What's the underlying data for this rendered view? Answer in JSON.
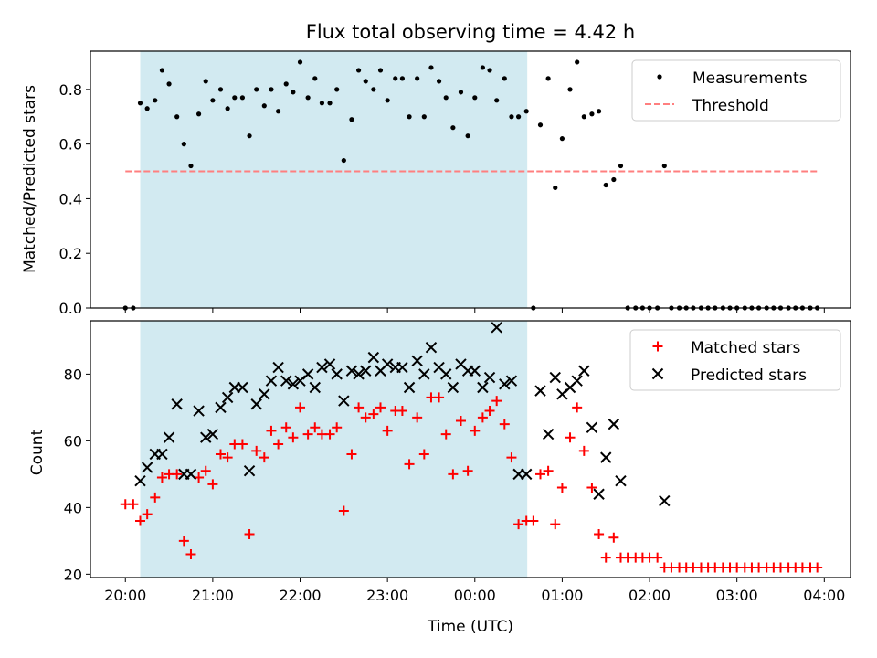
{
  "chart_data": [
    {
      "type": "scatter",
      "title": "Flux total observing time = 4.42 h",
      "ylabel": "Matched/Predicted stars",
      "xlabel": "",
      "xlim": [
        -0.4,
        8.3
      ],
      "ylim": [
        0,
        0.94
      ],
      "yticks": [
        0.0,
        0.2,
        0.4,
        0.6,
        0.8
      ],
      "ytick_labels": [
        "0.0",
        "0.2",
        "0.4",
        "0.6",
        "0.8"
      ],
      "shaded_span": [
        0.17,
        4.6
      ],
      "shaded_color": "#add8e6",
      "legend_position": "upper right",
      "series": [
        {
          "name": "Measurements",
          "marker": "dot",
          "color": "#000000",
          "x": [
            0.0,
            0.09,
            0.17,
            0.25,
            0.34,
            0.42,
            0.5,
            0.59,
            0.67,
            0.75,
            0.84,
            0.92,
            1.0,
            1.09,
            1.17,
            1.25,
            1.34,
            1.42,
            1.5,
            1.59,
            1.67,
            1.75,
            1.84,
            1.92,
            2.0,
            2.09,
            2.17,
            2.25,
            2.34,
            2.42,
            2.5,
            2.59,
            2.67,
            2.75,
            2.84,
            2.92,
            3.0,
            3.09,
            3.17,
            3.25,
            3.34,
            3.42,
            3.5,
            3.59,
            3.67,
            3.75,
            3.84,
            3.92,
            4.0,
            4.09,
            4.17,
            4.25,
            4.34,
            4.42,
            4.5,
            4.59,
            4.67,
            4.75,
            4.84,
            4.92,
            5.0,
            5.09,
            5.17,
            5.25,
            5.34,
            5.42,
            5.5,
            5.59,
            5.67,
            5.75,
            5.84,
            5.92,
            6.0,
            6.09,
            6.17,
            6.25,
            6.34,
            6.42,
            6.5,
            6.59,
            6.67,
            6.75,
            6.84,
            6.92,
            7.0,
            7.09,
            7.17,
            7.25,
            7.34,
            7.42,
            7.5,
            7.59,
            7.67,
            7.75,
            7.84,
            7.92
          ],
          "y": [
            0.0,
            0.0,
            0.75,
            0.73,
            0.76,
            0.87,
            0.82,
            0.7,
            0.6,
            0.52,
            0.71,
            0.83,
            0.76,
            0.8,
            0.73,
            0.77,
            0.77,
            0.63,
            0.8,
            0.74,
            0.8,
            0.72,
            0.82,
            0.79,
            0.9,
            0.77,
            0.84,
            0.75,
            0.75,
            0.8,
            0.54,
            0.69,
            0.87,
            0.83,
            0.8,
            0.87,
            0.76,
            0.84,
            0.84,
            0.7,
            0.84,
            0.7,
            0.88,
            0.83,
            0.77,
            0.66,
            0.79,
            0.63,
            0.77,
            0.88,
            0.87,
            0.76,
            0.84,
            0.7,
            0.7,
            0.72,
            0.0,
            0.67,
            0.84,
            0.44,
            0.62,
            0.8,
            0.9,
            0.7,
            0.71,
            0.72,
            0.45,
            0.47,
            0.52,
            0.0,
            0.0,
            0.0,
            0.0,
            0.0,
            0.52,
            0.0,
            0.0,
            0.0,
            0.0,
            0.0,
            0.0,
            0.0,
            0.0,
            0.0,
            0.0,
            0.0,
            0.0,
            0.0,
            0.0,
            0.0,
            0.0,
            0.0,
            0.0,
            0.0,
            0.0,
            0.0
          ]
        },
        {
          "name": "Threshold",
          "marker": "dashed-line",
          "color": "#ff7f7f",
          "x": [
            0.0,
            7.92
          ],
          "y": [
            0.5,
            0.5
          ]
        }
      ]
    },
    {
      "type": "scatter",
      "title": "",
      "xlabel": "Time (UTC)",
      "ylabel": "Count",
      "xlim": [
        -0.4,
        8.3
      ],
      "ylim": [
        19,
        96
      ],
      "yticks": [
        20,
        40,
        60,
        80
      ],
      "ytick_labels": [
        "20",
        "40",
        "60",
        "80"
      ],
      "xticks": [
        0,
        1,
        2,
        3,
        4,
        5,
        6,
        7,
        8
      ],
      "xtick_labels": [
        "20:00",
        "21:00",
        "22:00",
        "23:00",
        "00:00",
        "01:00",
        "02:00",
        "03:00",
        "04:00"
      ],
      "shaded_span": [
        0.17,
        4.6
      ],
      "shaded_color": "#add8e6",
      "legend_position": "upper right",
      "series": [
        {
          "name": "Matched stars",
          "marker": "plus",
          "color": "#ff0000",
          "x": [
            0.0,
            0.09,
            0.17,
            0.25,
            0.34,
            0.42,
            0.5,
            0.59,
            0.67,
            0.75,
            0.84,
            0.92,
            1.0,
            1.09,
            1.17,
            1.25,
            1.34,
            1.42,
            1.5,
            1.59,
            1.67,
            1.75,
            1.84,
            1.92,
            2.0,
            2.09,
            2.17,
            2.25,
            2.34,
            2.42,
            2.5,
            2.59,
            2.67,
            2.75,
            2.84,
            2.92,
            3.0,
            3.09,
            3.17,
            3.25,
            3.34,
            3.42,
            3.5,
            3.59,
            3.67,
            3.75,
            3.84,
            3.92,
            4.0,
            4.09,
            4.17,
            4.25,
            4.34,
            4.42,
            4.5,
            4.59,
            4.67,
            4.75,
            4.84,
            4.92,
            5.0,
            5.09,
            5.17,
            5.25,
            5.34,
            5.42,
            5.5,
            5.59,
            5.67,
            5.75,
            5.84,
            5.92,
            6.0,
            6.09,
            6.17,
            6.25,
            6.34,
            6.42,
            6.5,
            6.59,
            6.67,
            6.75,
            6.84,
            6.92,
            7.0,
            7.09,
            7.17,
            7.25,
            7.34,
            7.42,
            7.5,
            7.59,
            7.67,
            7.75,
            7.84,
            7.92
          ],
          "y": [
            41,
            41,
            36,
            38,
            43,
            49,
            50,
            50,
            30,
            26,
            49,
            51,
            47,
            56,
            55,
            59,
            59,
            32,
            57,
            55,
            63,
            59,
            64,
            61,
            70,
            62,
            64,
            62,
            62,
            64,
            39,
            56,
            70,
            67,
            68,
            70,
            63,
            69,
            69,
            53,
            67,
            56,
            73,
            73,
            62,
            50,
            66,
            51,
            63,
            67,
            69,
            72,
            65,
            55,
            35,
            36,
            36,
            50,
            51,
            35,
            46,
            61,
            70,
            57,
            46,
            32,
            25,
            31,
            25,
            25,
            25,
            25,
            25,
            25,
            22,
            22,
            22,
            22,
            22,
            22,
            22,
            22,
            22,
            22,
            22,
            22,
            22,
            22,
            22,
            22,
            22,
            22,
            22,
            22,
            22,
            22
          ]
        },
        {
          "name": "Predicted stars",
          "marker": "x",
          "color": "#000000",
          "x": [
            0.17,
            0.25,
            0.34,
            0.42,
            0.5,
            0.59,
            0.67,
            0.75,
            0.84,
            0.92,
            1.0,
            1.09,
            1.17,
            1.25,
            1.34,
            1.42,
            1.5,
            1.59,
            1.67,
            1.75,
            1.84,
            1.92,
            2.0,
            2.09,
            2.17,
            2.25,
            2.34,
            2.42,
            2.5,
            2.59,
            2.67,
            2.75,
            2.84,
            2.92,
            3.0,
            3.09,
            3.17,
            3.25,
            3.34,
            3.42,
            3.5,
            3.59,
            3.67,
            3.75,
            3.84,
            3.92,
            4.0,
            4.09,
            4.17,
            4.25,
            4.34,
            4.42,
            4.5,
            4.59,
            4.75,
            4.84,
            4.92,
            5.0,
            5.09,
            5.17,
            5.25,
            5.34,
            5.42,
            5.5,
            5.59,
            5.67,
            6.17
          ],
          "y": [
            48,
            52,
            56,
            56,
            61,
            71,
            50,
            50,
            69,
            61,
            62,
            70,
            73,
            76,
            76,
            51,
            71,
            74,
            78,
            82,
            78,
            77,
            78,
            80,
            76,
            82,
            83,
            80,
            72,
            81,
            80,
            81,
            85,
            81,
            83,
            82,
            82,
            76,
            84,
            80,
            88,
            82,
            80,
            76,
            83,
            81,
            81,
            76,
            79,
            94,
            77,
            78,
            50,
            50,
            75,
            62,
            79,
            74,
            76,
            78,
            81,
            64,
            44,
            55,
            65,
            48,
            42
          ]
        }
      ]
    }
  ]
}
